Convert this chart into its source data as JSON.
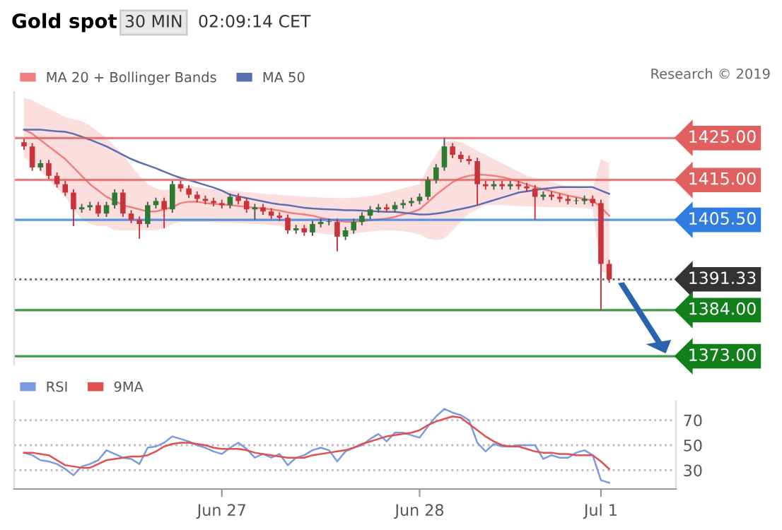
{
  "chart_data": [
    {
      "type": "candlestick",
      "title": "Gold spot",
      "annotations": [
        "30 MIN",
        "02:09:14 CET",
        "Research © 2019"
      ],
      "categories": [
        null,
        null,
        null,
        null,
        null,
        null,
        null,
        null,
        null,
        null,
        null,
        null,
        null,
        null,
        null,
        null,
        null,
        null,
        null,
        null,
        null,
        null,
        null,
        null,
        null,
        null,
        null,
        null,
        null,
        null,
        null,
        null,
        null,
        null,
        null,
        null,
        null,
        null,
        null,
        null,
        null,
        null,
        null,
        null,
        null,
        null,
        null,
        null,
        null,
        null,
        null,
        null,
        null,
        null,
        null,
        null,
        null,
        null,
        null,
        null,
        null,
        null,
        null,
        null,
        null,
        null,
        null,
        null,
        null,
        null,
        null,
        null
      ],
      "ohlc": [
        [
          1424,
          1424.8,
          1422.2,
          1423
        ],
        [
          1423,
          1423.8,
          1417.2,
          1418
        ],
        [
          1418,
          1419.8,
          1417.2,
          1419
        ],
        [
          1419,
          1419.8,
          1415.2,
          1416
        ],
        [
          1416,
          1416.8,
          1413.2,
          1414
        ],
        [
          1414,
          1414.8,
          1411.2,
          1412
        ],
        [
          1412,
          1412.8,
          1404,
          1408
        ],
        [
          1408,
          1409.3,
          1407.2,
          1408.5
        ],
        [
          1408.5,
          1409.8,
          1407.7,
          1409
        ],
        [
          1409,
          1409.8,
          1406.2,
          1407
        ],
        [
          1407,
          1409.8,
          1406.2,
          1409
        ],
        [
          1409,
          1412.8,
          1408.2,
          1412
        ],
        [
          1412,
          1412.8,
          1406.2,
          1407
        ],
        [
          1407,
          1407.8,
          1404.7,
          1405.5
        ],
        [
          1405.5,
          1406.3,
          1401,
          1404.5
        ],
        [
          1404.5,
          1409.8,
          1403.7,
          1409
        ],
        [
          1409,
          1410.8,
          1408.2,
          1410
        ],
        [
          1410,
          1410.8,
          1403.5,
          1408
        ],
        [
          1408,
          1414.8,
          1407.2,
          1414
        ],
        [
          1414,
          1414.8,
          1412.2,
          1413
        ],
        [
          1413,
          1413.8,
          1410.7,
          1411.5
        ],
        [
          1411.5,
          1412.3,
          1409.7,
          1410.5
        ],
        [
          1410.5,
          1411.3,
          1409.2,
          1410
        ],
        [
          1410,
          1410.8,
          1408.7,
          1409.5
        ],
        [
          1409.5,
          1410.3,
          1408.2,
          1409
        ],
        [
          1409,
          1411.8,
          1408.2,
          1411
        ],
        [
          1411,
          1411.8,
          1409.2,
          1410
        ],
        [
          1410,
          1410.8,
          1407.2,
          1408
        ],
        [
          1408,
          1409.3,
          1405.5,
          1408.5
        ],
        [
          1408.5,
          1409.3,
          1406.7,
          1407.5
        ],
        [
          1407.5,
          1408.3,
          1405.7,
          1406.5
        ],
        [
          1406.5,
          1407.3,
          1405.2,
          1406
        ],
        [
          1406,
          1406.8,
          1402.2,
          1403
        ],
        [
          1403,
          1404.3,
          1402.2,
          1403.5
        ],
        [
          1403.5,
          1404.3,
          1401.7,
          1402.5
        ],
        [
          1402.5,
          1405.3,
          1401.7,
          1404.5
        ],
        [
          1404.5,
          1405.8,
          1403.7,
          1405
        ],
        [
          1405,
          1405.8,
          1404.2,
          1405
        ],
        [
          1405,
          1405.8,
          1398,
          1401.5
        ],
        [
          1401.5,
          1403.8,
          1400.7,
          1403
        ],
        [
          1403,
          1405.8,
          1402.2,
          1405
        ],
        [
          1405,
          1407.3,
          1404.2,
          1406.5
        ],
        [
          1406.5,
          1408.8,
          1405.7,
          1408
        ],
        [
          1408,
          1409.3,
          1407.2,
          1408.5
        ],
        [
          1408.5,
          1409.3,
          1407.2,
          1408
        ],
        [
          1408,
          1409.8,
          1407.2,
          1409
        ],
        [
          1409,
          1410.3,
          1408.2,
          1409.5
        ],
        [
          1409.5,
          1410.8,
          1408.7,
          1410
        ],
        [
          1410,
          1411.8,
          1409.2,
          1411
        ],
        [
          1411,
          1415.8,
          1410.2,
          1415
        ],
        [
          1415,
          1418.8,
          1414.2,
          1418
        ],
        [
          1418,
          1425,
          1417.2,
          1423
        ],
        [
          1423,
          1423.8,
          1420.2,
          1421
        ],
        [
          1421,
          1421.8,
          1419.2,
          1420
        ],
        [
          1420,
          1420.8,
          1418.7,
          1419.5
        ],
        [
          1419.5,
          1420.3,
          1409,
          1414
        ],
        [
          1414,
          1414.8,
          1412.7,
          1413.5
        ],
        [
          1413.5,
          1414.8,
          1412.7,
          1414
        ],
        [
          1414,
          1414.8,
          1412.7,
          1413.5
        ],
        [
          1413.5,
          1414.8,
          1412.7,
          1414
        ],
        [
          1414,
          1414.8,
          1412.7,
          1413.5
        ],
        [
          1413.5,
          1414.3,
          1412.2,
          1413
        ],
        [
          1413,
          1413.8,
          1405.5,
          1411
        ],
        [
          1411,
          1412.3,
          1410.2,
          1411.5
        ],
        [
          1411.5,
          1412.3,
          1410.2,
          1411
        ],
        [
          1411,
          1411.8,
          1409.7,
          1410.5
        ],
        [
          1410.5,
          1411.3,
          1409.2,
          1410
        ],
        [
          1410,
          1410.8,
          1409.2,
          1410
        ],
        [
          1410,
          1411.3,
          1409.2,
          1410.5
        ],
        [
          1410.5,
          1411.3,
          1408.7,
          1409.5
        ],
        [
          1409.5,
          1410.3,
          1384,
          1395
        ],
        [
          1395,
          1396,
          1390.5,
          1391.33
        ]
      ],
      "series": [
        {
          "name": "MA 20 + Bollinger Bands",
          "type": "line",
          "color": "#f08080",
          "values": [
            1427,
            1426,
            1424.5,
            1423,
            1421.5,
            1420,
            1418,
            1416,
            1414,
            1412.5,
            1411,
            1410,
            1409,
            1408.5,
            1408,
            1407.5,
            1407.5,
            1408,
            1408.5,
            1409.5,
            1409.8,
            1409.8,
            1409.5,
            1409.3,
            1409.2,
            1409,
            1408.8,
            1408.6,
            1408.4,
            1408.2,
            1408,
            1407.7,
            1407.3,
            1407,
            1406.8,
            1406.5,
            1406,
            1405.6,
            1405.3,
            1405,
            1405,
            1405.2,
            1405.4,
            1405.6,
            1405.8,
            1406.2,
            1406.8,
            1407.3,
            1408,
            1409.7,
            1411.5,
            1413,
            1414.5,
            1415.5,
            1416,
            1416.3,
            1416.2,
            1416,
            1415.7,
            1415.2,
            1414.6,
            1414,
            1413.3,
            1412.8,
            1412.3,
            1411.8,
            1411.3,
            1410.9,
            1410.5,
            1410.1,
            1408.5,
            1406.5
          ],
          "upper": [
            1434.6,
            1434,
            1433,
            1432,
            1431,
            1430,
            1429.5,
            1429,
            1428,
            1426.5,
            1425,
            1423,
            1421,
            1418.5,
            1416,
            1414,
            1413,
            1412.5,
            1413,
            1413.5,
            1413.5,
            1413.3,
            1413,
            1412.8,
            1412.6,
            1412.5,
            1412.3,
            1412.1,
            1412,
            1411.8,
            1411.6,
            1411.5,
            1411.3,
            1411.2,
            1411,
            1411,
            1410.8,
            1410.8,
            1410.7,
            1410.7,
            1410.8,
            1411,
            1411.2,
            1411.5,
            1412,
            1412.5,
            1413,
            1413.5,
            1414,
            1418,
            1421,
            1424,
            1424.5,
            1424,
            1423,
            1422,
            1421,
            1420,
            1419,
            1418,
            1417,
            1416,
            1415.5,
            1415,
            1414.5,
            1414,
            1413.5,
            1413.5,
            1413,
            1413,
            1420,
            1419
          ],
          "lower": [
            1420.5,
            1419,
            1417,
            1415,
            1413,
            1411,
            1408,
            1405.5,
            1404.5,
            1404,
            1404,
            1403,
            1403,
            1403,
            1403,
            1403,
            1403,
            1403.5,
            1404.5,
            1405,
            1405,
            1405,
            1405,
            1404.9,
            1404.8,
            1404.8,
            1404.7,
            1404.6,
            1404.5,
            1404.5,
            1404.2,
            1404,
            1403.6,
            1403.3,
            1403,
            1402.6,
            1402.3,
            1402,
            1402,
            1402,
            1402.3,
            1402.5,
            1402.7,
            1402.9,
            1403,
            1403,
            1402.8,
            1402.5,
            1402,
            1401,
            1400.7,
            1401,
            1403,
            1405,
            1407,
            1408,
            1409,
            1409,
            1409,
            1408.9,
            1408.8,
            1408.7,
            1408.6,
            1408.6,
            1408.5,
            1408.5,
            1408.5,
            1408.4,
            1408.3,
            1408,
            1393,
            1393
          ]
        },
        {
          "name": "MA 50",
          "type": "line",
          "color": "#5a6fb0",
          "values": [
            1427,
            1427,
            1427,
            1426.8,
            1426.6,
            1426.5,
            1426,
            1425.3,
            1424.6,
            1423.8,
            1423,
            1422,
            1421,
            1420,
            1419.2,
            1418.5,
            1417.8,
            1417,
            1416.2,
            1415.5,
            1415,
            1414.4,
            1413.8,
            1413.2,
            1412.5,
            1411.5,
            1411.1,
            1410.7,
            1410.3,
            1409.9,
            1409.5,
            1409.2,
            1409,
            1408.7,
            1408.4,
            1408.2,
            1408.1,
            1408,
            1407.9,
            1407.8,
            1407.8,
            1407.7,
            1407.6,
            1407.5,
            1407.4,
            1407.4,
            1407.2,
            1407,
            1406.8,
            1406.8,
            1407,
            1407.3,
            1407.7,
            1408.1,
            1408.5,
            1409,
            1409.6,
            1410.2,
            1410.8,
            1411.4,
            1412,
            1412.3,
            1412.6,
            1412.9,
            1413.1,
            1413.3,
            1413.3,
            1413.3,
            1413.3,
            1413.3,
            1412.5,
            1411.7
          ]
        }
      ],
      "ylim": [
        1371,
        1436
      ],
      "ref_lines": [
        {
          "axis": "y",
          "value": 1425,
          "label": "1425.00",
          "color": "#e06060",
          "line_style": "solid"
        },
        {
          "axis": "y",
          "value": 1415,
          "label": "1415.00",
          "color": "#e06060",
          "line_style": "solid"
        },
        {
          "axis": "y",
          "value": 1405.5,
          "label": "1405.50",
          "color": "#2f7de1",
          "line_style": "solid"
        },
        {
          "axis": "y",
          "value": 1391.33,
          "label": "1391.33",
          "color": "#333333",
          "line_style": "dotted"
        },
        {
          "axis": "y",
          "value": 1384,
          "label": "1384.00",
          "color": "#12801a",
          "line_style": "solid"
        },
        {
          "axis": "y",
          "value": 1373,
          "label": "1373.00",
          "color": "#12801a",
          "line_style": "solid"
        }
      ],
      "legend": "top left",
      "tick_labels": false,
      "grid": false
    },
    {
      "type": "line",
      "categories": [
        null,
        null,
        null,
        null,
        null,
        null,
        null,
        null,
        null,
        null,
        null,
        null,
        null,
        null,
        null,
        null,
        null,
        null,
        null,
        null,
        null,
        null,
        null,
        null,
        "Jun 27",
        null,
        null,
        null,
        null,
        null,
        null,
        null,
        null,
        null,
        null,
        null,
        null,
        null,
        null,
        null,
        null,
        null,
        null,
        null,
        null,
        null,
        null,
        null,
        "Jun 28",
        null,
        null,
        null,
        null,
        null,
        null,
        null,
        null,
        null,
        null,
        null,
        null,
        null,
        null,
        null,
        null,
        null,
        null,
        null,
        null,
        null,
        "Jul 1",
        null
      ],
      "series": [
        {
          "name": "RSI",
          "color": "#7b9be0",
          "values": [
            44,
            42,
            38,
            37,
            35,
            31,
            26,
            33,
            35,
            38,
            46,
            43,
            40,
            39,
            35,
            48,
            49,
            52,
            57,
            55,
            53,
            50,
            48,
            45,
            43,
            48,
            52,
            47,
            40,
            43,
            40,
            43,
            34,
            40,
            42,
            46,
            48,
            46,
            37,
            45,
            48,
            50,
            55,
            59,
            53,
            60,
            60,
            58,
            56,
            65,
            73,
            79,
            76,
            74,
            70,
            52,
            45,
            51,
            49,
            49,
            50,
            50,
            50,
            39,
            42,
            40,
            40,
            44,
            46,
            42,
            22,
            20
          ]
        },
        {
          "name": "9MA",
          "color": "#e05050",
          "values": [
            44,
            44,
            43,
            42,
            38,
            34,
            33,
            32,
            32,
            35,
            38,
            39,
            40,
            41,
            41,
            42,
            45,
            49,
            51,
            52,
            52,
            51,
            50,
            48,
            47,
            47,
            47,
            46,
            44,
            43,
            42,
            41,
            40,
            40,
            40,
            42,
            43,
            44,
            45,
            46,
            48,
            51,
            53,
            55,
            57,
            58,
            59,
            60,
            62,
            66,
            69,
            71,
            73,
            72,
            67,
            62,
            57,
            53,
            50,
            49,
            49,
            47,
            45,
            44,
            44,
            43,
            43,
            42,
            42,
            42,
            37,
            31
          ]
        }
      ],
      "ylim": [
        15,
        85
      ],
      "yticks": [
        30,
        50,
        70
      ],
      "grid": "y",
      "legend": "top left"
    }
  ]
}
